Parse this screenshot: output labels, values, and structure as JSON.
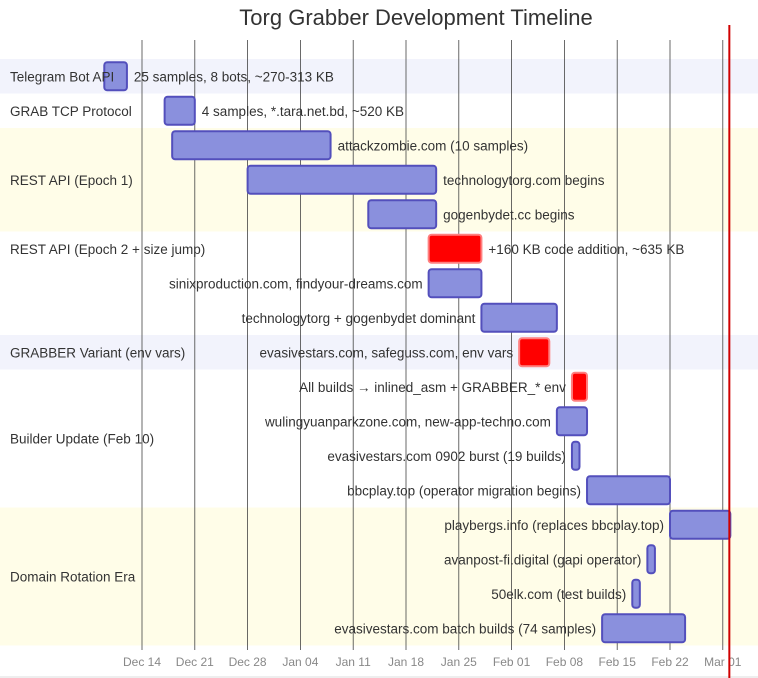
{
  "chart_data": {
    "type": "gantt",
    "title": "Torg Grabber Development Timeline",
    "x_ticks": [
      "Dec 14",
      "Dec 21",
      "Dec 28",
      "Jan 04",
      "Jan 11",
      "Jan 18",
      "Jan 25",
      "Feb 01",
      "Feb 08",
      "Feb 15",
      "Feb 22",
      "Mar 01"
    ],
    "today_marker": "Mar 02",
    "colors": {
      "task": "#8a90dd",
      "task_border": "#534fbc",
      "critical": "#ff0000",
      "today": "#d00000",
      "section_odd": "#f2f3fc",
      "section_even": "#fffde8",
      "grid": "#444444"
    },
    "sections": [
      {
        "name": "Telegram Bot API",
        "tasks": [
          {
            "label": "25 samples, 8 bots, ~270-313 KB",
            "start": "Dec 09",
            "end": "Dec 12",
            "crit": false
          }
        ]
      },
      {
        "name": "GRAB TCP Protocol",
        "tasks": [
          {
            "label": "4 samples, *.tara.net.bd, ~520 KB",
            "start": "Dec 17",
            "end": "Dec 21",
            "crit": false
          }
        ]
      },
      {
        "name": "REST API (Epoch 1)",
        "tasks": [
          {
            "label": "attackzombie.com (10 samples)",
            "start": "Dec 18",
            "end": "Jan 08",
            "crit": false
          },
          {
            "label": "technologytorg.com begins",
            "start": "Dec 28",
            "end": "Jan 22",
            "crit": false
          },
          {
            "label": "gogenbydet.cc begins",
            "start": "Jan 13",
            "end": "Jan 22",
            "crit": false
          }
        ]
      },
      {
        "name": "REST API (Epoch 2 + size jump)",
        "tasks": [
          {
            "label": "+160 KB code addition, ~635 KB",
            "start": "Jan 21",
            "end": "Jan 28",
            "crit": true
          },
          {
            "label": "sinixproduction.com, findyour-dreams.com",
            "start": "Jan 21",
            "end": "Jan 28",
            "crit": false
          },
          {
            "label": "technologytorg + gogenbydet dominant",
            "start": "Jan 28",
            "end": "Feb 07",
            "crit": false
          }
        ]
      },
      {
        "name": "GRABBER Variant (env vars)",
        "tasks": [
          {
            "label": "evasivestars.com, safeguss.com, env vars",
            "start": "Feb 02",
            "end": "Feb 06",
            "crit": true
          }
        ]
      },
      {
        "name": "Builder Update (Feb 10)",
        "tasks": [
          {
            "label": "All builds → inlined_asm + GRABBER_* env",
            "start": "Feb 09",
            "end": "Feb 11",
            "crit": true
          },
          {
            "label": "wulingyuanparkzone.com, new-app-techno.com",
            "start": "Feb 07",
            "end": "Feb 11",
            "crit": false
          },
          {
            "label": "evasivestars.com 0902 burst (19 builds)",
            "start": "Feb 09",
            "end": "Feb 10",
            "crit": false
          },
          {
            "label": "bbcplay.top (operator migration begins)",
            "start": "Feb 11",
            "end": "Feb 22",
            "crit": false
          }
        ]
      },
      {
        "name": "Domain Rotation Era",
        "tasks": [
          {
            "label": "playbergs.info (replaces bbcplay.top)",
            "start": "Feb 22",
            "end": "Mar 02",
            "crit": false
          },
          {
            "label": "avanpost-fi.digital (gapi operator)",
            "start": "Feb 19",
            "end": "Feb 20",
            "crit": false
          },
          {
            "label": "50elk.com (test builds)",
            "start": "Feb 17",
            "end": "Feb 18",
            "crit": false
          },
          {
            "label": "evasivestars.com batch builds (74 samples)",
            "start": "Feb 13",
            "end": "Feb 24",
            "crit": false
          }
        ]
      }
    ]
  }
}
